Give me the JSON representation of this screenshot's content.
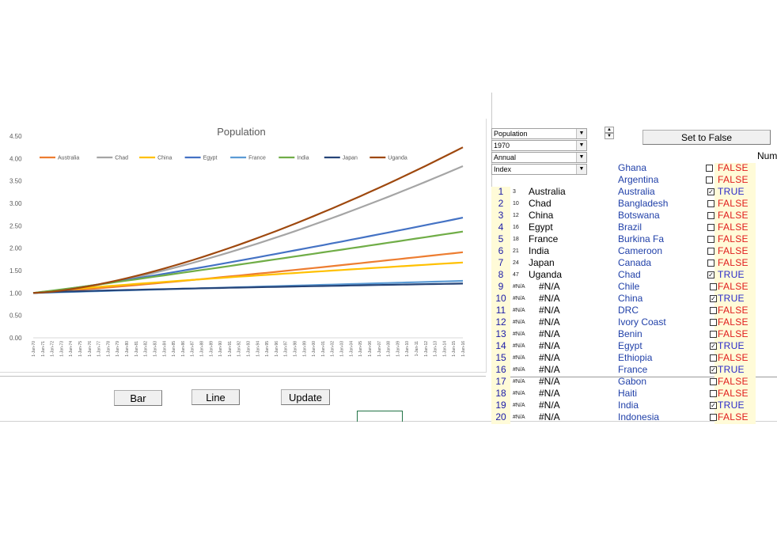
{
  "buttons": {
    "bar": "Bar",
    "line": "Line",
    "update": "Update",
    "set_false": "Set to False"
  },
  "header_fragment": "Num",
  "controls": {
    "metric": "Population",
    "year": "1970",
    "frequency": "Annual",
    "mode": "Index"
  },
  "icons": {
    "dropdown": "dropdown-arrow-icon",
    "spinner": "spinner-icon",
    "checkbox": "checkbox-icon"
  },
  "countries_header": [
    "Ghana",
    "Argentina"
  ],
  "header_flags": [
    "FALSE",
    "FALSE"
  ],
  "rows": [
    {
      "rank": "1",
      "code": "3",
      "name": "Australia",
      "country": "Australia",
      "flag": "TRUE"
    },
    {
      "rank": "2",
      "code": "10",
      "name": "Chad",
      "country": "Bangladesh",
      "flag": "FALSE"
    },
    {
      "rank": "3",
      "code": "12",
      "name": "China",
      "country": "Botswana",
      "flag": "FALSE"
    },
    {
      "rank": "4",
      "code": "16",
      "name": "Egypt",
      "country": "Brazil",
      "flag": "FALSE"
    },
    {
      "rank": "5",
      "code": "18",
      "name": "France",
      "country": "Burkina Fa",
      "flag": "FALSE"
    },
    {
      "rank": "6",
      "code": "21",
      "name": "India",
      "country": "Cameroon",
      "flag": "FALSE"
    },
    {
      "rank": "7",
      "code": "24",
      "name": "Japan",
      "country": "Canada",
      "flag": "FALSE"
    },
    {
      "rank": "8",
      "code": "47",
      "name": "Uganda",
      "country": "Chad",
      "flag": "TRUE"
    },
    {
      "rank": "9",
      "code": "#N/A",
      "name": "#N/A",
      "country": "Chile",
      "flag": "FALSE"
    },
    {
      "rank": "10",
      "code": "#N/A",
      "name": "#N/A",
      "country": "China",
      "flag": "TRUE"
    },
    {
      "rank": "11",
      "code": "#N/A",
      "name": "#N/A",
      "country": "DRC",
      "flag": "FALSE"
    },
    {
      "rank": "12",
      "code": "#N/A",
      "name": "#N/A",
      "country": "Ivory Coast",
      "flag": "FALSE"
    },
    {
      "rank": "13",
      "code": "#N/A",
      "name": "#N/A",
      "country": "Benin",
      "flag": "FALSE"
    },
    {
      "rank": "14",
      "code": "#N/A",
      "name": "#N/A",
      "country": "Egypt",
      "flag": "TRUE"
    },
    {
      "rank": "15",
      "code": "#N/A",
      "name": "#N/A",
      "country": "Ethiopia",
      "flag": "FALSE"
    },
    {
      "rank": "16",
      "code": "#N/A",
      "name": "#N/A",
      "country": "France",
      "flag": "TRUE"
    },
    {
      "rank": "17",
      "code": "#N/A",
      "name": "#N/A",
      "country": "Gabon",
      "flag": "FALSE"
    },
    {
      "rank": "18",
      "code": "#N/A",
      "name": "#N/A",
      "country": "Haiti",
      "flag": "FALSE"
    },
    {
      "rank": "19",
      "code": "#N/A",
      "name": "#N/A",
      "country": "India",
      "flag": "TRUE"
    },
    {
      "rank": "20",
      "code": "#N/A",
      "name": "#N/A",
      "country": "Indonesia",
      "flag": "FALSE"
    }
  ],
  "chart_data": {
    "type": "line",
    "title": "Population",
    "xlabel": "",
    "ylabel": "",
    "ylim": [
      0,
      4.5
    ],
    "yticks": [
      "0.00",
      "0.50",
      "1.00",
      "1.50",
      "2.00",
      "2.50",
      "3.00",
      "3.50",
      "4.00",
      "4.50"
    ],
    "grid": false,
    "legend": "top",
    "x": [
      "1-Jan-70",
      "1-Jan-71",
      "1-Jan-72",
      "1-Jan-73",
      "1-Jan-74",
      "1-Jan-75",
      "1-Jan-76",
      "1-Jan-77",
      "1-Jan-78",
      "1-Jan-79",
      "1-Jan-80",
      "1-Jan-81",
      "1-Jan-82",
      "1-Jan-83",
      "1-Jan-84",
      "1-Jan-85",
      "1-Jan-86",
      "1-Jan-87",
      "1-Jan-88",
      "1-Jan-89",
      "1-Jan-90",
      "1-Jan-91",
      "1-Jan-92",
      "1-Jan-93",
      "1-Jan-94",
      "1-Jan-95",
      "1-Jan-96",
      "1-Jan-97",
      "1-Jan-98",
      "1-Jan-99",
      "1-Jan-00",
      "1-Jan-01",
      "1-Jan-02",
      "1-Jan-03",
      "1-Jan-04",
      "1-Jan-05",
      "1-Jan-06",
      "1-Jan-07",
      "1-Jan-08",
      "1-Jan-09",
      "1-Jan-10",
      "1-Jan-11",
      "1-Jan-12",
      "1-Jan-13",
      "1-Jan-14",
      "1-Jan-15",
      "1-Jan-16"
    ],
    "series": [
      {
        "name": "Australia",
        "color": "#ed7d31",
        "start": 1.0,
        "end": 1.91,
        "shape": 1.15
      },
      {
        "name": "Chad",
        "color": "#a5a5a5",
        "start": 1.0,
        "end": 3.83,
        "shape": 1.45
      },
      {
        "name": "China",
        "color": "#ffc000",
        "start": 1.0,
        "end": 1.68,
        "shape": 0.85
      },
      {
        "name": "Egypt",
        "color": "#4472c4",
        "start": 1.0,
        "end": 2.68,
        "shape": 1.15
      },
      {
        "name": "France",
        "color": "#5b9bd5",
        "start": 1.0,
        "end": 1.27,
        "shape": 1.0
      },
      {
        "name": "India",
        "color": "#70ad47",
        "start": 1.0,
        "end": 2.37,
        "shape": 1.05
      },
      {
        "name": "Japan",
        "color": "#264478",
        "start": 1.0,
        "end": 1.21,
        "shape": 0.75
      },
      {
        "name": "Uganda",
        "color": "#9e480e",
        "start": 1.0,
        "end": 4.25,
        "shape": 1.5
      }
    ]
  }
}
